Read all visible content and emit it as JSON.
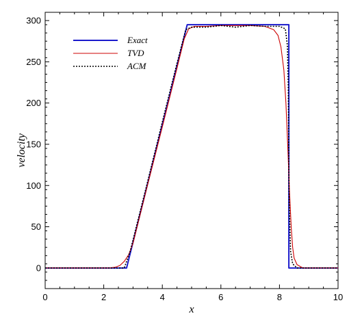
{
  "chart_data": {
    "type": "line",
    "title": "",
    "xlabel": "x",
    "ylabel": "velocity",
    "xlim": [
      0,
      10
    ],
    "ylim": [
      -25,
      310
    ],
    "xticks": [
      0,
      2,
      4,
      6,
      8,
      10
    ],
    "yticks": [
      0,
      50,
      100,
      150,
      200,
      250,
      300
    ],
    "xtick_labels": [
      "0",
      "2",
      "4",
      "6",
      "8",
      "10"
    ],
    "ytick_labels": [
      "0",
      "50",
      "100",
      "150",
      "200",
      "250",
      "300"
    ],
    "grid": false,
    "legend": {
      "placement": "top-left"
    },
    "series": [
      {
        "name": "Exact",
        "color": "#1a1acc",
        "dash": "solid",
        "x": [
          0,
          2.78,
          4.85,
          8.32,
          8.32,
          8.35,
          10
        ],
        "y": [
          0,
          0,
          295,
          295,
          0,
          0,
          0
        ]
      },
      {
        "name": "TVD",
        "color": "#cc0000",
        "dash": "solid",
        "x": [
          0,
          2.2,
          2.4,
          2.55,
          2.7,
          2.85,
          3.0,
          3.5,
          4.0,
          4.5,
          4.75,
          4.9,
          5.1,
          5.5,
          6.0,
          6.5,
          7.0,
          7.5,
          7.8,
          7.95,
          8.05,
          8.15,
          8.22,
          8.28,
          8.34,
          8.4,
          8.45,
          8.5,
          8.6,
          8.8,
          10
        ],
        "y": [
          0,
          0,
          1,
          3,
          8,
          16,
          30,
          101,
          171,
          242,
          278,
          290,
          293,
          293,
          294,
          294,
          294,
          293,
          289,
          282,
          268,
          240,
          200,
          150,
          95,
          50,
          25,
          12,
          4,
          0,
          0
        ]
      },
      {
        "name": "ACM",
        "color": "#000000",
        "dash": "dotted",
        "x": [
          0,
          2.7,
          2.9,
          3.5,
          4.0,
          4.5,
          4.8,
          5.0,
          5.5,
          6.0,
          6.5,
          7.0,
          7.5,
          8.0,
          8.2,
          8.27,
          8.3,
          8.33,
          8.38,
          8.45,
          8.6,
          10
        ],
        "y": [
          0,
          0,
          20,
          105,
          177,
          248,
          289,
          292,
          292,
          294,
          292,
          294,
          293,
          293,
          290,
          270,
          220,
          80,
          20,
          5,
          0,
          0
        ]
      }
    ]
  }
}
